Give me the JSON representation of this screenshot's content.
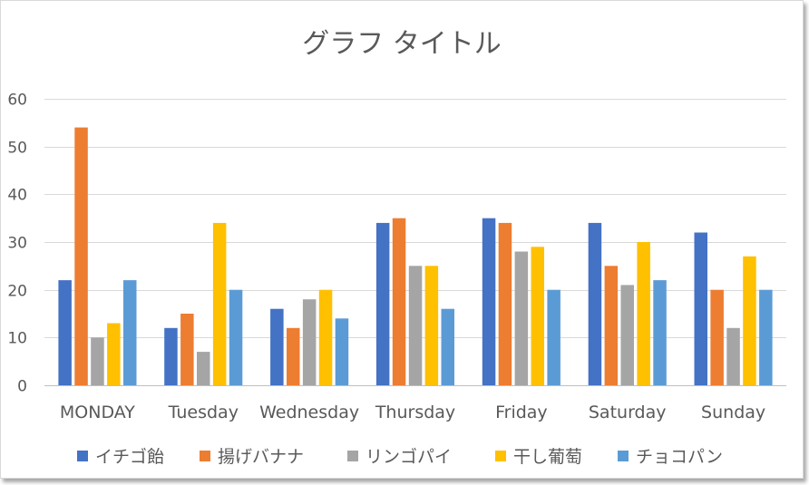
{
  "chart_data": {
    "type": "bar",
    "title": "グラフ タイトル",
    "xlabel": "",
    "ylabel": "",
    "ylim": [
      0,
      60
    ],
    "yticks": [
      0,
      10,
      20,
      30,
      40,
      50,
      60
    ],
    "grid": true,
    "legend_position": "bottom",
    "categories": [
      "MONDAY",
      "Tuesday",
      "Wednesday",
      "Thursday",
      "Friday",
      "Saturday",
      "Sunday"
    ],
    "series": [
      {
        "name": "イチゴ飴",
        "color": "#4472C4",
        "values": [
          22,
          12,
          16,
          34,
          35,
          34,
          32
        ]
      },
      {
        "name": "揚げバナナ",
        "color": "#ED7D31",
        "values": [
          54,
          15,
          12,
          35,
          34,
          25,
          20
        ]
      },
      {
        "name": "リンゴパイ",
        "color": "#A5A5A5",
        "values": [
          10,
          7,
          18,
          25,
          28,
          21,
          12
        ]
      },
      {
        "name": "干し葡萄",
        "color": "#FFC000",
        "values": [
          13,
          34,
          20,
          25,
          29,
          30,
          27
        ]
      },
      {
        "name": "チョコパン",
        "color": "#5B9BD5",
        "values": [
          22,
          20,
          14,
          16,
          20,
          22,
          20
        ]
      }
    ]
  }
}
